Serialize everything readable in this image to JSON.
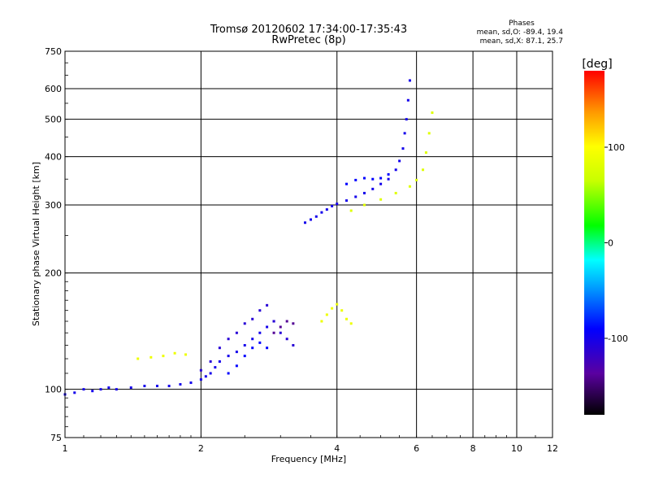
{
  "chart_data": {
    "type": "scatter",
    "title": "Tromsø 20120602 17:34:00-17:35:43",
    "subtitle": "RwPretec (8p)",
    "xlabel": "Frequency [MHz]",
    "ylabel": "Stationary phase Virtual Height [km]",
    "x_scale": "log",
    "y_scale": "log",
    "xlim": [
      1,
      12
    ],
    "ylim": [
      75,
      750
    ],
    "x_ticks": [
      1,
      2,
      4,
      6,
      8,
      10,
      12
    ],
    "y_ticks": [
      75,
      100,
      200,
      300,
      400,
      500,
      600,
      750
    ],
    "grid": true,
    "phases_box": {
      "title": "Phases",
      "line_o": "mean, sd,O: -89.4, 19.4",
      "line_x": "mean, sd,X: 87.1, 25.7"
    },
    "colorbar": {
      "label": "[deg]",
      "range": [
        -180,
        180
      ],
      "ticks": [
        {
          "value": 100,
          "label": "100"
        },
        {
          "value": 0,
          "label": "0"
        },
        {
          "value": -100,
          "label": "-100"
        }
      ]
    },
    "traces": [
      {
        "points": [
          [
            1.0,
            97
          ],
          [
            1.05,
            98
          ],
          [
            1.1,
            100
          ],
          [
            1.15,
            99
          ],
          [
            1.2,
            100
          ],
          [
            1.25,
            101
          ],
          [
            1.3,
            100
          ],
          [
            1.4,
            101
          ],
          [
            1.5,
            102
          ],
          [
            1.6,
            102
          ],
          [
            1.7,
            102
          ],
          [
            1.8,
            103
          ],
          [
            1.9,
            104
          ],
          [
            2.0,
            106
          ],
          [
            2.05,
            108
          ],
          [
            2.1,
            110
          ],
          [
            2.15,
            114
          ],
          [
            2.2,
            118
          ],
          [
            2.3,
            122
          ],
          [
            2.4,
            125
          ],
          [
            2.5,
            130
          ],
          [
            2.6,
            135
          ],
          [
            2.7,
            140
          ],
          [
            2.8,
            145
          ],
          [
            2.9,
            150
          ]
        ],
        "phase": -100
      },
      {
        "points": [
          [
            2.0,
            112
          ],
          [
            2.1,
            118
          ],
          [
            2.2,
            128
          ],
          [
            2.3,
            135
          ],
          [
            2.4,
            140
          ],
          [
            2.5,
            148
          ],
          [
            2.6,
            152
          ],
          [
            2.7,
            160
          ],
          [
            2.8,
            165
          ],
          [
            2.9,
            150
          ],
          [
            3.0,
            140
          ],
          [
            3.1,
            135
          ],
          [
            3.2,
            130
          ]
        ],
        "phase": -110
      },
      {
        "points": [
          [
            2.3,
            110
          ],
          [
            2.4,
            115
          ],
          [
            2.5,
            122
          ],
          [
            2.6,
            128
          ],
          [
            2.7,
            132
          ],
          [
            2.8,
            128
          ]
        ],
        "phase": -90
      },
      {
        "points": [
          [
            3.4,
            270
          ],
          [
            3.5,
            275
          ],
          [
            3.6,
            280
          ],
          [
            3.7,
            287
          ],
          [
            3.8,
            292
          ],
          [
            3.9,
            298
          ],
          [
            4.0,
            302
          ],
          [
            4.2,
            308
          ],
          [
            4.4,
            315
          ],
          [
            4.6,
            322
          ],
          [
            4.8,
            330
          ],
          [
            5.0,
            340
          ],
          [
            5.2,
            350
          ],
          [
            5.4,
            370
          ],
          [
            5.5,
            390
          ],
          [
            5.6,
            420
          ],
          [
            5.65,
            460
          ],
          [
            5.7,
            500
          ],
          [
            5.75,
            560
          ],
          [
            5.8,
            630
          ]
        ],
        "phase": -100
      },
      {
        "points": [
          [
            4.2,
            340
          ],
          [
            4.4,
            348
          ],
          [
            4.6,
            352
          ],
          [
            4.8,
            350
          ],
          [
            5.0,
            352
          ],
          [
            5.2,
            360
          ]
        ],
        "phase": -90
      },
      {
        "points": [
          [
            4.3,
            290
          ],
          [
            4.6,
            300
          ],
          [
            5.0,
            310
          ],
          [
            5.4,
            322
          ],
          [
            5.8,
            335
          ],
          [
            6.0,
            348
          ],
          [
            6.2,
            370
          ],
          [
            6.3,
            410
          ],
          [
            6.4,
            460
          ],
          [
            6.5,
            520
          ]
        ],
        "phase": 80
      },
      {
        "points": [
          [
            3.7,
            150
          ],
          [
            3.8,
            156
          ],
          [
            3.9,
            162
          ],
          [
            4.0,
            166
          ],
          [
            4.1,
            160
          ],
          [
            4.2,
            152
          ],
          [
            4.3,
            148
          ]
        ],
        "phase": 90
      },
      {
        "points": [
          [
            1.45,
            120
          ],
          [
            1.55,
            121
          ],
          [
            1.65,
            122
          ],
          [
            1.75,
            124
          ],
          [
            1.85,
            123
          ]
        ],
        "phase": 90
      },
      {
        "points": [
          [
            2.9,
            140
          ],
          [
            3.0,
            145
          ],
          [
            3.1,
            150
          ],
          [
            3.2,
            148
          ]
        ],
        "phase": -140
      }
    ]
  }
}
